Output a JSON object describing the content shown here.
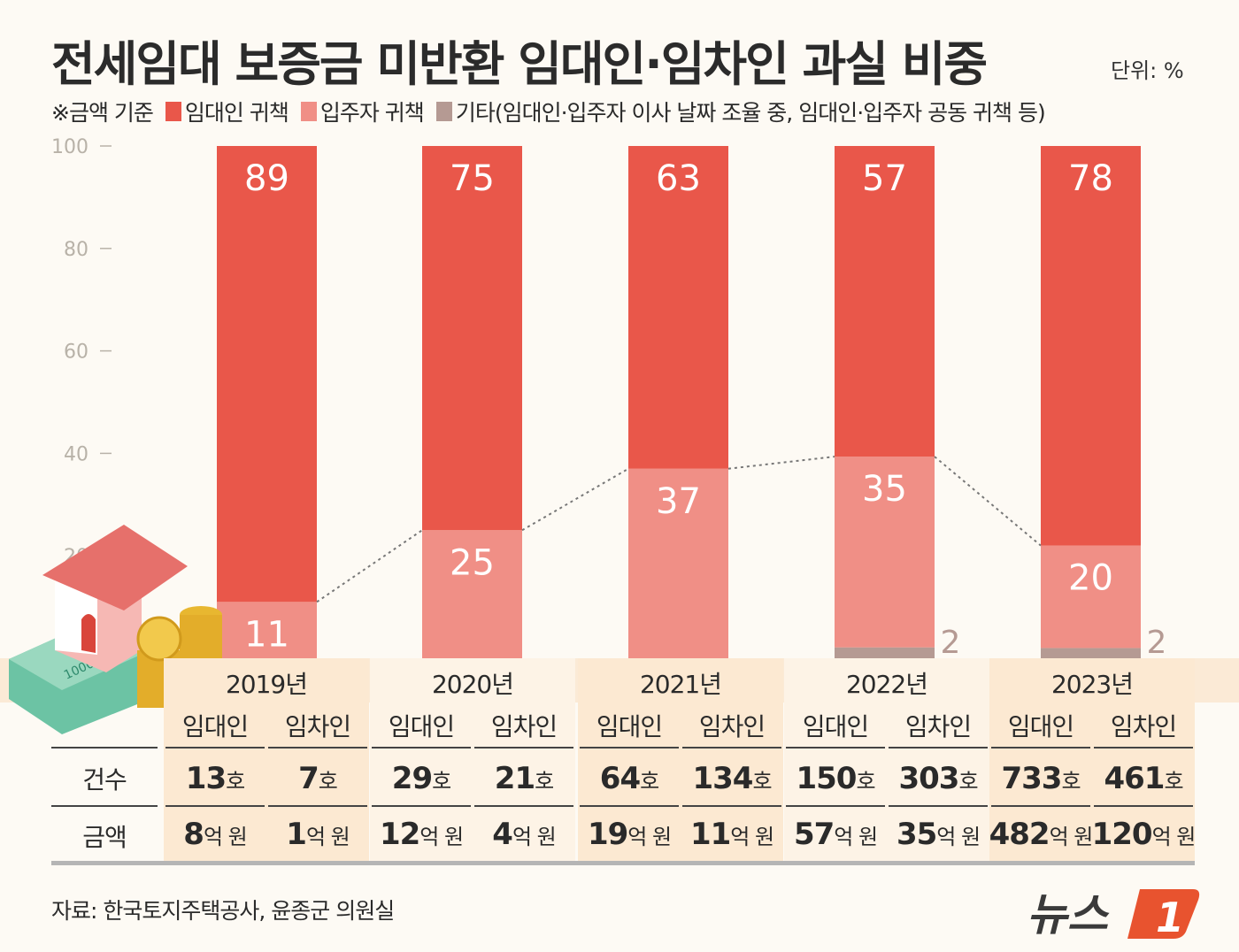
{
  "title": "전세임대 보증금 미반환 임대인·임차인 과실 비중",
  "unit": "단위: %",
  "legend": {
    "note": "※금액 기준",
    "items": [
      {
        "label": "임대인 귀책",
        "color": "#e9574a"
      },
      {
        "label": "입주자 귀책",
        "color": "#f08f86"
      },
      {
        "label": "기타(임대인·입주자 이사 날짜 조율 중, 임대인·입주자 공동 귀책 등)",
        "color": "#b59a93"
      }
    ]
  },
  "chart_data": {
    "type": "bar",
    "stacked": true,
    "title": "전세임대 보증금 미반환 임대인·임차인 과실 비중",
    "categories": [
      "2019년",
      "2020년",
      "2021년",
      "2022년",
      "2023년"
    ],
    "series": [
      {
        "name": "기타(임대인·입주자 이사 날짜 조율 중, 임대인·입주자 공동 귀책 등)",
        "color": "#b59a93",
        "values": [
          0,
          0,
          0,
          2,
          2
        ]
      },
      {
        "name": "입주자 귀책",
        "color": "#f08f86",
        "values": [
          11,
          25,
          37,
          35,
          20
        ]
      },
      {
        "name": "임대인 귀책",
        "color": "#e9574a",
        "values": [
          89,
          75,
          63,
          57,
          78
        ]
      }
    ],
    "yticks": [
      20,
      40,
      60,
      80,
      100
    ],
    "ylim": [
      0,
      100
    ],
    "ylabel": "",
    "xlabel": "",
    "grid": false
  },
  "table": {
    "row_labels": [
      "건수",
      "금액"
    ],
    "sub_headers": [
      "임대인",
      "임차인"
    ],
    "years": [
      {
        "year": "2019년",
        "count": [
          [
            "13",
            "호"
          ],
          [
            "7",
            "호"
          ]
        ],
        "amount": [
          [
            "8",
            "억 원"
          ],
          [
            "1",
            "억 원"
          ]
        ]
      },
      {
        "year": "2020년",
        "count": [
          [
            "29",
            "호"
          ],
          [
            "21",
            "호"
          ]
        ],
        "amount": [
          [
            "12",
            "억 원"
          ],
          [
            "4",
            "억 원"
          ]
        ]
      },
      {
        "year": "2021년",
        "count": [
          [
            "64",
            "호"
          ],
          [
            "134",
            "호"
          ]
        ],
        "amount": [
          [
            "19",
            "억 원"
          ],
          [
            "11",
            "억 원"
          ]
        ]
      },
      {
        "year": "2022년",
        "count": [
          [
            "150",
            "호"
          ],
          [
            "303",
            "호"
          ]
        ],
        "amount": [
          [
            "57",
            "억 원"
          ],
          [
            "35",
            "억 원"
          ]
        ]
      },
      {
        "year": "2023년",
        "count": [
          [
            "733",
            "호"
          ],
          [
            "461",
            "호"
          ]
        ],
        "amount": [
          [
            "482",
            "억 원"
          ],
          [
            "120",
            "억 원"
          ]
        ]
      }
    ]
  },
  "source": "자료: 한국토지주택공사, 윤종군 의원실",
  "logo": {
    "text": "뉴스1",
    "color": "#e8532f"
  },
  "illustration": {
    "banknote_text": "10000"
  }
}
